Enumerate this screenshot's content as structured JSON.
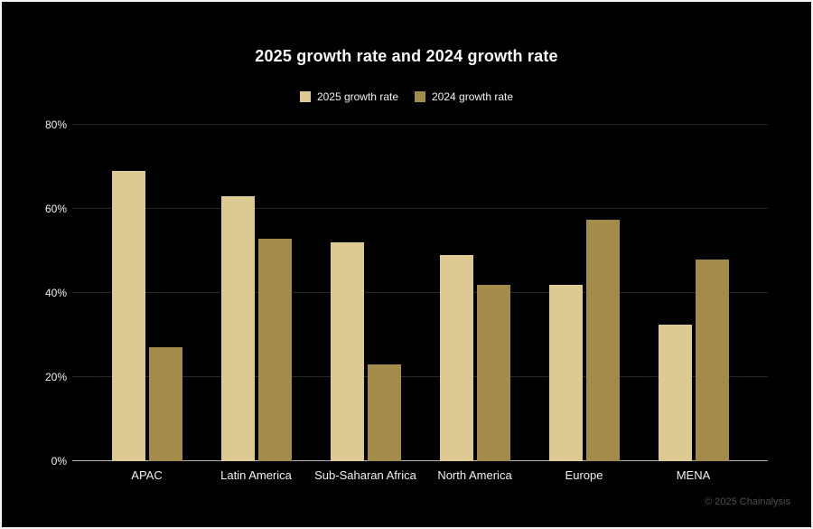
{
  "title": "2025 growth rate and 2024 growth rate",
  "footer": "© 2025 Chainalysis",
  "colors": {
    "background": "#000000",
    "frame_border": "#f5f5f5",
    "series_2025": "#dcca92",
    "series_2024": "#a38c49",
    "gridline": "#272727",
    "axis_line": "#b3b3b3",
    "text": "#f2f2f2",
    "footer_text": "#4f4f4f"
  },
  "legend": {
    "items": [
      {
        "label": "2025 growth rate",
        "color": "#dcca92"
      },
      {
        "label": "2024 growth rate",
        "color": "#a38c49"
      }
    ]
  },
  "chart_data": {
    "type": "bar",
    "title": "2025 growth rate and 2024 growth rate",
    "categories": [
      "APAC",
      "Latin America",
      "Sub-Saharan Africa",
      "North America",
      "Europe",
      "MENA"
    ],
    "series": [
      {
        "name": "2025 growth rate",
        "color": "#dcca92",
        "values": [
          69,
          63,
          52,
          49,
          42,
          32.5
        ]
      },
      {
        "name": "2024 growth rate",
        "color": "#a38c49",
        "values": [
          27,
          53,
          23,
          42,
          57.5,
          48
        ]
      }
    ],
    "xlabel": "",
    "ylabel": "",
    "ylim": [
      0,
      80
    ],
    "ytick_values": [
      0,
      20,
      40,
      60,
      80
    ],
    "ytick_labels": [
      "0%",
      "20%",
      "40%",
      "60%",
      "80%"
    ],
    "grid": "horizontal",
    "legend_position": "top-center",
    "background": "#000000"
  }
}
